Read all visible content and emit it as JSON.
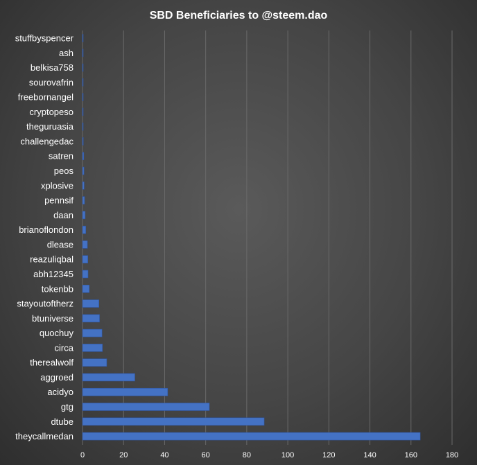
{
  "chart_data": {
    "type": "bar",
    "orientation": "horizontal",
    "title": "SBD Beneficiaries to @steem.dao",
    "xlabel": "",
    "ylabel": "",
    "xlim": [
      0,
      180
    ],
    "xticks": [
      "0",
      "20",
      "40",
      "60",
      "80",
      "100",
      "120",
      "140",
      "160",
      "180"
    ],
    "grid": true,
    "legend": "none",
    "bar_color": "#4472c4",
    "categories": [
      "stuffbyspencer",
      "ash",
      "belkisa758",
      "sourovafrin",
      "freebornangel",
      "cryptopeso",
      "theguruasia",
      "challengedac",
      "satren",
      "peos",
      "xplosive",
      "pennsif",
      "daan",
      "brianoflondon",
      "dlease",
      "reazuliqbal",
      "abh12345",
      "tokenbb",
      "stayoutoftherz",
      "btuniverse",
      "quochuy",
      "circa",
      "therealwolf",
      "aggroed",
      "acidyo",
      "gtg",
      "dtube",
      "theycallmedan"
    ],
    "values": [
      0.1,
      0.1,
      0.2,
      0.2,
      0.2,
      0.3,
      0.3,
      0.4,
      0.6,
      0.7,
      0.8,
      1.0,
      1.3,
      1.6,
      2.4,
      2.6,
      2.7,
      3.3,
      8.0,
      8.3,
      9.5,
      9.7,
      11.8,
      25.5,
      41.5,
      61.8,
      88.5,
      164.5
    ]
  }
}
